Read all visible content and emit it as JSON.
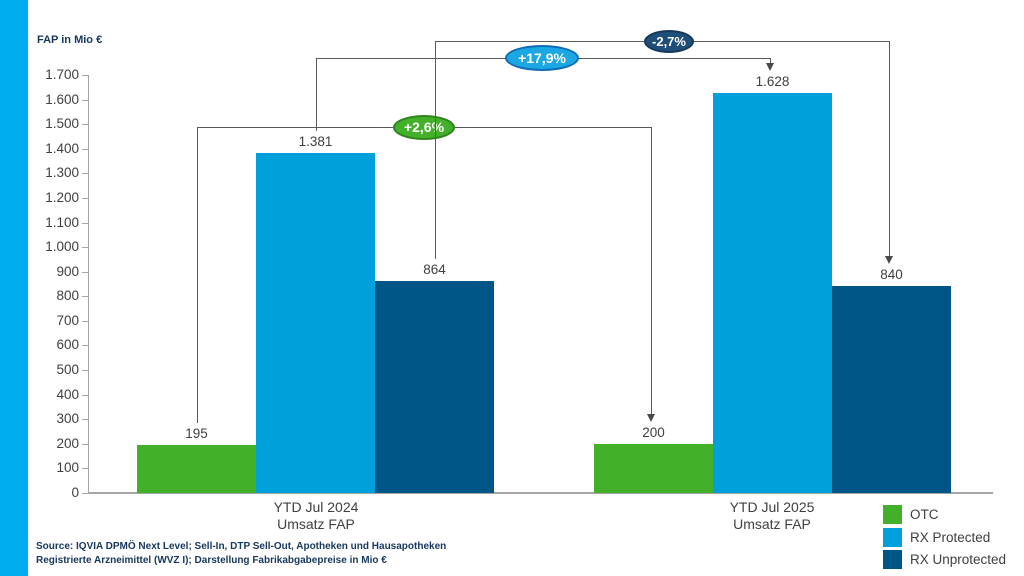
{
  "colors": {
    "accent_stripe": "#00AEEF",
    "otc_green": "#43B02A",
    "rx_protected_blue": "#00A0DC",
    "rx_unprotected_navy": "#005587",
    "axis_gray": "#A6A6A6",
    "connector_gray": "#5A5A5A",
    "text_dark": "#404040",
    "text_navy": "#17375E"
  },
  "source": {
    "line1": "Source: IQVIA DPMÖ Next Level; Sell-In, DTP Sell-Out, Apotheken und Hausapotheken",
    "line2": "Registrierte Arzneimittel (WVZ I); Darstellung Fabrikabgabepreise in Mio €"
  },
  "chart_data": {
    "type": "bar",
    "title": "",
    "ylabel": "FAP in Mio €",
    "xlabel": "",
    "ylim": [
      0,
      1700
    ],
    "ytick_step": 100,
    "ytick_labels": [
      "0",
      "100",
      "200",
      "300",
      "400",
      "500",
      "600",
      "700",
      "800",
      "900",
      "1.000",
      "1.100",
      "1.200",
      "1.300",
      "1.400",
      "1.500",
      "1.600",
      "1.700"
    ],
    "grid": false,
    "legend_position": "bottom-right",
    "categories": [
      {
        "line1": "YTD Jul 2024",
        "line2": "Umsatz FAP"
      },
      {
        "line1": "YTD Jul 2025",
        "line2": "Umsatz FAP"
      }
    ],
    "series": [
      {
        "name": "OTC",
        "color": "#43B02A",
        "values": [
          195,
          200
        ],
        "value_labels": [
          "195",
          "200"
        ]
      },
      {
        "name": "RX Protected",
        "color": "#00A0DC",
        "values": [
          1381,
          1628
        ],
        "value_labels": [
          "1.381",
          "1.628"
        ]
      },
      {
        "name": "RX Unprotected",
        "color": "#005587",
        "values": [
          864,
          840
        ],
        "value_labels": [
          "864",
          "840"
        ]
      }
    ],
    "annotations": [
      {
        "label": "+2,6%",
        "series": "OTC",
        "fill": "#43B02A",
        "border": "#2F831C"
      },
      {
        "label": "+17,9%",
        "series": "RX Protected",
        "fill": "#1BA7E3",
        "border": "#0D6EB6"
      },
      {
        "label": "-2,7%",
        "series": "RX Unprotected",
        "fill": "#1F4E79",
        "border": "#16395B"
      }
    ]
  }
}
